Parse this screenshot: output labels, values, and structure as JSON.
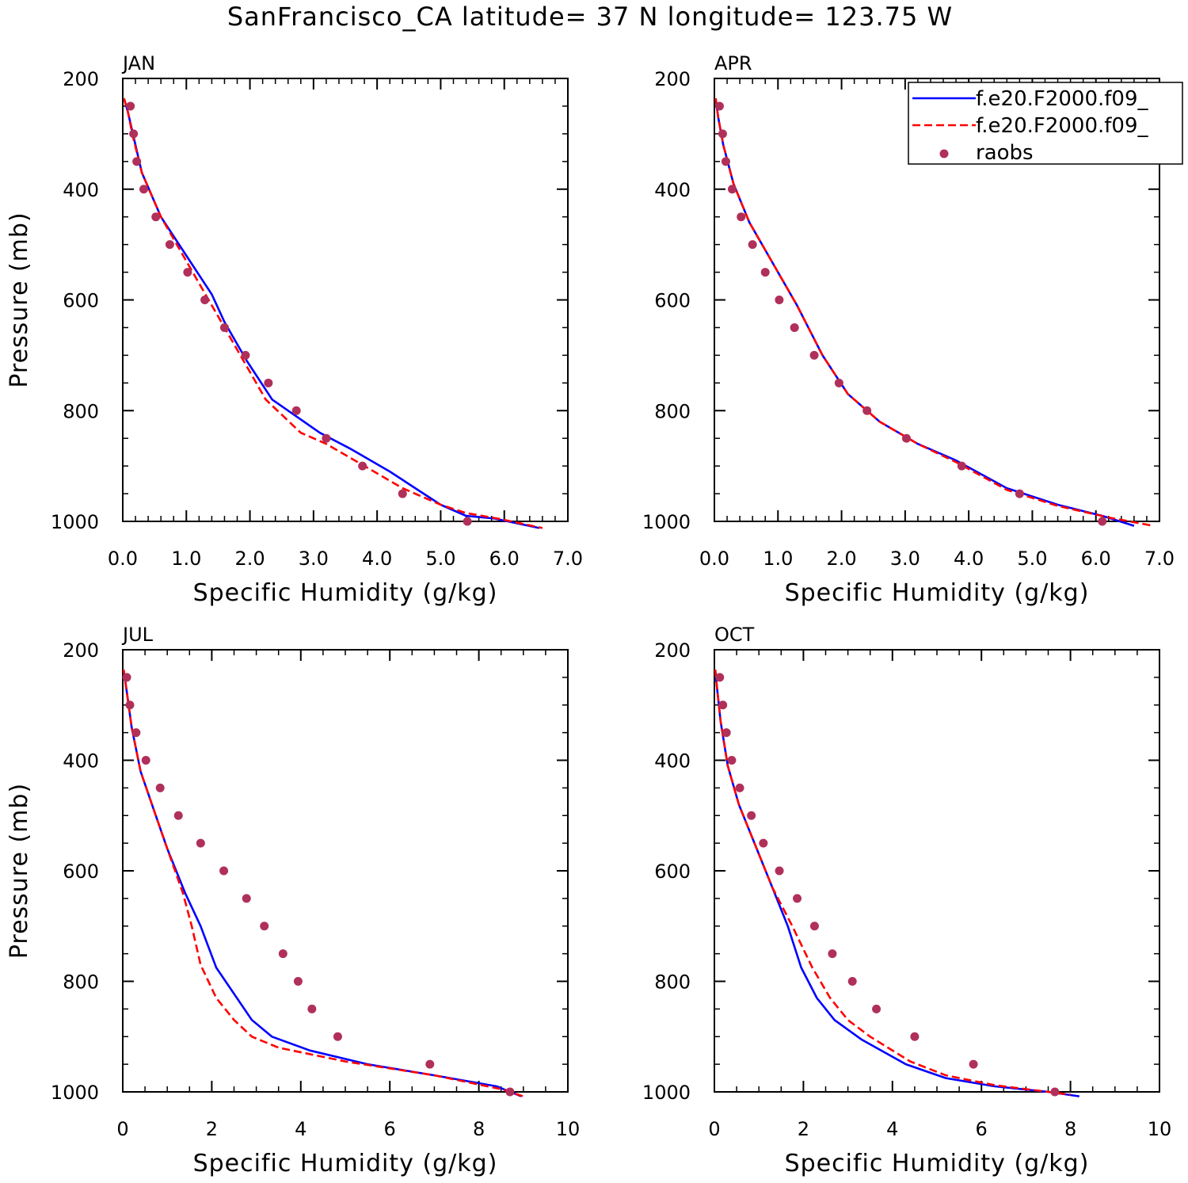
{
  "figure": {
    "title": "SanFrancisco_CA  latitude= 37 N longitude= 123.75 W"
  },
  "chart_data": [
    {
      "type": "line",
      "panel": "JAN",
      "xlabel": "Specific Humidity (g/kg)",
      "ylabel": "Pressure (mb)",
      "xlim": [
        0,
        7
      ],
      "ylim": [
        200,
        1000
      ],
      "y_inverted": true,
      "x_ticks": [
        "0.0",
        "1.0",
        "2.0",
        "3.0",
        "4.0",
        "5.0",
        "6.0",
        "7.0"
      ],
      "y_ticks": [
        "200",
        "400",
        "600",
        "800",
        "1000"
      ],
      "series": [
        {
          "name": "f.e20.F2000.f09_",
          "style": "solid",
          "color": "#0000ff",
          "x": [
            0.02,
            0.08,
            0.16,
            0.3,
            0.6,
            1.0,
            1.4,
            1.6,
            1.95,
            2.35,
            3.1,
            3.6,
            4.2,
            4.6,
            5.0,
            5.4,
            5.85,
            6.55
          ],
          "y": [
            236,
            260,
            300,
            370,
            450,
            520,
            590,
            640,
            710,
            780,
            840,
            870,
            910,
            940,
            970,
            990,
            995,
            1012
          ]
        },
        {
          "name": "f.e20.F2000.f09_",
          "style": "dashed",
          "color": "#ff0000",
          "x": [
            0.02,
            0.08,
            0.15,
            0.3,
            0.6,
            0.95,
            1.3,
            1.6,
            1.9,
            2.25,
            2.8,
            3.2,
            3.8,
            4.4,
            5.0,
            5.4,
            5.9,
            6.6
          ],
          "y": [
            236,
            260,
            300,
            370,
            450,
            520,
            590,
            650,
            710,
            780,
            840,
            860,
            900,
            940,
            970,
            985,
            995,
            1012
          ]
        }
      ],
      "points": {
        "name": "raobs",
        "color": "#b0305a",
        "x": [
          0.12,
          0.17,
          0.22,
          0.33,
          0.52,
          0.74,
          1.02,
          1.29,
          1.6,
          1.93,
          2.29,
          2.73,
          3.2,
          3.77,
          4.4,
          5.42
        ],
        "y": [
          250,
          300,
          350,
          400,
          450,
          500,
          550,
          600,
          650,
          700,
          750,
          800,
          850,
          900,
          950,
          1000
        ]
      }
    },
    {
      "type": "line",
      "panel": "APR",
      "xlabel": "Specific Humidity (g/kg)",
      "ylabel": "",
      "xlim": [
        0,
        7
      ],
      "ylim": [
        200,
        1000
      ],
      "y_inverted": true,
      "x_ticks": [
        "0.0",
        "1.0",
        "2.0",
        "3.0",
        "4.0",
        "5.0",
        "6.0",
        "7.0"
      ],
      "y_ticks": [
        "200",
        "400",
        "600",
        "800",
        "1000"
      ],
      "legend": {
        "position": "top-right",
        "entries": [
          {
            "label": "f.e20.F2000.f09_",
            "style": "solid",
            "color": "#0000ff"
          },
          {
            "label": "f.e20.F2000.f09_",
            "style": "dashed",
            "color": "#ff0000"
          },
          {
            "label": "raobs",
            "style": "marker",
            "color": "#b0305a"
          }
        ]
      },
      "series": [
        {
          "name": "f.e20.F2000.f09_",
          "style": "solid",
          "color": "#0000ff",
          "x": [
            0.02,
            0.06,
            0.14,
            0.3,
            0.55,
            0.9,
            1.3,
            1.7,
            2.1,
            2.6,
            3.2,
            3.8,
            4.6,
            5.4,
            6.1,
            6.6
          ],
          "y": [
            236,
            270,
            320,
            390,
            460,
            530,
            610,
            700,
            770,
            820,
            860,
            890,
            940,
            970,
            990,
            1008
          ]
        },
        {
          "name": "f.e20.F2000.f09_",
          "style": "dashed",
          "color": "#ff0000",
          "x": [
            0.02,
            0.06,
            0.14,
            0.3,
            0.55,
            0.9,
            1.3,
            1.7,
            2.1,
            2.6,
            3.2,
            3.8,
            4.6,
            5.4,
            6.2,
            6.9
          ],
          "y": [
            236,
            270,
            320,
            390,
            460,
            530,
            610,
            700,
            770,
            820,
            860,
            893,
            943,
            972,
            993,
            1008
          ]
        }
      ],
      "points": {
        "name": "raobs",
        "color": "#b0305a",
        "x": [
          0.08,
          0.13,
          0.18,
          0.28,
          0.42,
          0.6,
          0.8,
          1.02,
          1.26,
          1.57,
          1.96,
          2.4,
          3.02,
          3.89,
          4.8,
          6.1
        ],
        "y": [
          250,
          300,
          350,
          400,
          450,
          500,
          550,
          600,
          650,
          700,
          750,
          800,
          850,
          900,
          950,
          1000
        ]
      }
    },
    {
      "type": "line",
      "panel": "JUL",
      "xlabel": "Specific Humidity (g/kg)",
      "ylabel": "Pressure (mb)",
      "xlim": [
        0,
        10
      ],
      "ylim": [
        200,
        1000
      ],
      "y_inverted": true,
      "x_ticks": [
        "0",
        "2",
        "4",
        "6",
        "8",
        "10"
      ],
      "y_ticks": [
        "200",
        "400",
        "600",
        "800",
        "1000"
      ],
      "series": [
        {
          "name": "f.e20.F2000.f09_",
          "style": "solid",
          "color": "#0000ff",
          "x": [
            0.02,
            0.08,
            0.2,
            0.4,
            0.7,
            1.0,
            1.4,
            1.75,
            2.1,
            2.9,
            3.35,
            4.2,
            5.5,
            7.0,
            8.4,
            8.95
          ],
          "y": [
            236,
            270,
            340,
            420,
            490,
            560,
            640,
            700,
            775,
            870,
            900,
            925,
            950,
            970,
            990,
            1008
          ]
        },
        {
          "name": "f.e20.F2000.f09_",
          "style": "dashed",
          "color": "#ff0000",
          "x": [
            0.02,
            0.08,
            0.2,
            0.4,
            0.7,
            1.0,
            1.35,
            1.55,
            1.75,
            2.1,
            2.5,
            2.9,
            3.5,
            5.0,
            7.0,
            8.5,
            9.0
          ],
          "y": [
            236,
            270,
            340,
            420,
            490,
            560,
            640,
            700,
            770,
            830,
            870,
            900,
            920,
            945,
            970,
            995,
            1008
          ]
        }
      ],
      "points": {
        "name": "raobs",
        "color": "#b0305a",
        "x": [
          0.09,
          0.16,
          0.3,
          0.52,
          0.84,
          1.25,
          1.75,
          2.27,
          2.78,
          3.18,
          3.6,
          3.94,
          4.25,
          4.83,
          6.9,
          8.7
        ],
        "y": [
          250,
          300,
          350,
          400,
          450,
          500,
          550,
          600,
          650,
          700,
          750,
          800,
          850,
          900,
          950,
          1000
        ]
      }
    },
    {
      "type": "line",
      "panel": "OCT",
      "xlabel": "Specific Humidity (g/kg)",
      "ylabel": "",
      "xlim": [
        0,
        10
      ],
      "ylim": [
        200,
        1000
      ],
      "y_inverted": true,
      "x_ticks": [
        "0",
        "2",
        "4",
        "6",
        "8",
        "10"
      ],
      "y_ticks": [
        "200",
        "400",
        "600",
        "800",
        "1000"
      ],
      "series": [
        {
          "name": "f.e20.F2000.f09_",
          "style": "solid",
          "color": "#0000ff",
          "x": [
            0.02,
            0.06,
            0.14,
            0.3,
            0.55,
            0.9,
            1.3,
            1.65,
            1.95,
            2.3,
            2.7,
            3.3,
            4.3,
            5.2,
            6.3,
            7.5,
            8.2
          ],
          "y": [
            236,
            270,
            330,
            410,
            480,
            550,
            630,
            700,
            775,
            830,
            870,
            905,
            950,
            975,
            990,
            1000,
            1008
          ]
        },
        {
          "name": "f.e20.F2000.f09_",
          "style": "dashed",
          "color": "#ff0000",
          "x": [
            0.02,
            0.06,
            0.14,
            0.3,
            0.55,
            0.9,
            1.3,
            1.75,
            2.2,
            2.6,
            3.0,
            3.5,
            4.4,
            5.2,
            6.3,
            7.5,
            8.0
          ],
          "y": [
            236,
            270,
            330,
            410,
            480,
            550,
            630,
            700,
            775,
            830,
            870,
            900,
            945,
            970,
            988,
            1000,
            1005
          ]
        }
      ],
      "points": {
        "name": "raobs",
        "color": "#b0305a",
        "x": [
          0.12,
          0.19,
          0.27,
          0.39,
          0.57,
          0.83,
          1.1,
          1.46,
          1.86,
          2.25,
          2.65,
          3.1,
          3.64,
          4.5,
          5.82,
          7.65
        ],
        "y": [
          250,
          300,
          350,
          400,
          450,
          500,
          550,
          600,
          650,
          700,
          750,
          800,
          850,
          900,
          950,
          1000
        ]
      }
    }
  ]
}
